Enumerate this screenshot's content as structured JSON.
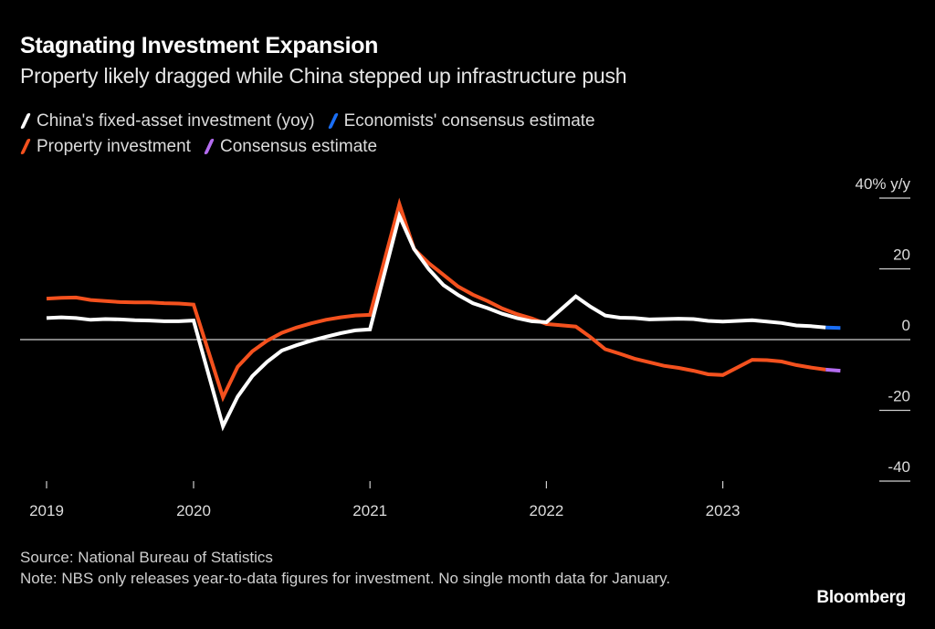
{
  "header": {
    "title": "Stagnating Investment Expansion",
    "subtitle": "Property likely dragged while China stepped up infrastructure push"
  },
  "legend": [
    {
      "label": "China's fixed-asset investment (yoy)",
      "color": "#ffffff"
    },
    {
      "label": "Economists' consensus estimate",
      "color": "#1a6ef5"
    },
    {
      "label": "Property investment",
      "color": "#f4511e"
    },
    {
      "label": "Consensus estimate",
      "color": "#b46cf0"
    }
  ],
  "footer": {
    "source": "Source: National Bureau of Statistics",
    "note": "Note: NBS only releases year-to-data figures for investment. No single month data for January."
  },
  "brand": "Bloomberg",
  "chart_data": {
    "type": "line",
    "title": "Stagnating Investment Expansion",
    "subtitle": "Property likely dragged while China stepped up infrastructure push",
    "ylabel": "% y/y",
    "ylim": [
      -40,
      40
    ],
    "yticks": [
      40,
      20,
      0,
      -20,
      -40
    ],
    "ytick_labels": [
      "40% y/y",
      "20",
      "0",
      "-20",
      "-40"
    ],
    "xticks": [
      "2019",
      "2020",
      "2021",
      "2022",
      "2023"
    ],
    "grid": false,
    "legend_position": "top-left",
    "x": [
      "2019-02",
      "2019-03",
      "2019-04",
      "2019-05",
      "2019-06",
      "2019-07",
      "2019-08",
      "2019-09",
      "2019-10",
      "2019-11",
      "2019-12",
      "2020-02",
      "2020-03",
      "2020-04",
      "2020-05",
      "2020-06",
      "2020-07",
      "2020-08",
      "2020-09",
      "2020-10",
      "2020-11",
      "2020-12",
      "2021-02",
      "2021-03",
      "2021-04",
      "2021-05",
      "2021-06",
      "2021-07",
      "2021-08",
      "2021-09",
      "2021-10",
      "2021-11",
      "2021-12",
      "2022-02",
      "2022-03",
      "2022-04",
      "2022-05",
      "2022-06",
      "2022-07",
      "2022-08",
      "2022-09",
      "2022-10",
      "2022-11",
      "2022-12",
      "2023-02",
      "2023-03",
      "2023-04",
      "2023-05",
      "2023-06",
      "2023-07"
    ],
    "series": [
      {
        "name": "China's fixed-asset investment (yoy)",
        "color": "#ffffff",
        "values": [
          6.1,
          6.3,
          6.1,
          5.6,
          5.8,
          5.7,
          5.5,
          5.4,
          5.2,
          5.2,
          5.4,
          -24.5,
          -16.1,
          -10.3,
          -6.3,
          -3.1,
          -1.6,
          -0.3,
          0.8,
          1.8,
          2.6,
          2.9,
          35.0,
          25.6,
          19.9,
          15.4,
          12.6,
          10.3,
          8.9,
          7.3,
          6.1,
          5.2,
          4.9,
          12.2,
          9.3,
          6.8,
          6.2,
          6.1,
          5.7,
          5.8,
          5.9,
          5.8,
          5.3,
          5.1,
          5.5,
          5.1,
          4.7,
          4.0,
          3.8,
          3.4
        ]
      },
      {
        "name": "Property investment",
        "color": "#f4511e",
        "values": [
          11.6,
          11.8,
          11.9,
          11.2,
          10.9,
          10.6,
          10.5,
          10.5,
          10.3,
          10.2,
          9.9,
          -16.3,
          -7.7,
          -3.3,
          -0.3,
          1.9,
          3.4,
          4.6,
          5.6,
          6.3,
          6.8,
          7.0,
          38.3,
          25.6,
          21.6,
          18.3,
          15.0,
          12.7,
          10.9,
          8.8,
          7.2,
          6.0,
          4.4,
          3.7,
          0.7,
          -2.7,
          -4.0,
          -5.4,
          -6.4,
          -7.4,
          -8.0,
          -8.8,
          -9.8,
          -10.0,
          -5.7,
          -5.8,
          -6.2,
          -7.2,
          -7.9,
          -8.5
        ]
      },
      {
        "name": "Economists' consensus estimate",
        "color": "#1a6ef5",
        "x": [
          "2023-07",
          "2023-08"
        ],
        "values": [
          3.4,
          3.3
        ]
      },
      {
        "name": "Consensus estimate",
        "color": "#b46cf0",
        "x": [
          "2023-07",
          "2023-08"
        ],
        "values": [
          -8.5,
          -8.8
        ]
      }
    ]
  }
}
